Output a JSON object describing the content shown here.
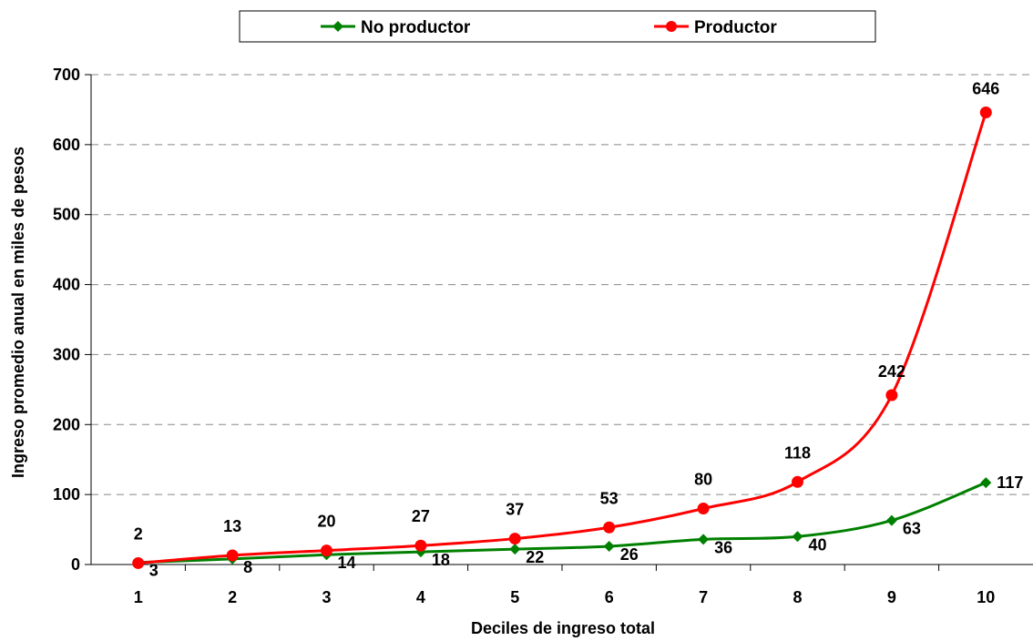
{
  "chart_data": {
    "type": "line",
    "title": "",
    "xlabel": "Deciles de ingreso total",
    "ylabel": "Ingreso promedio anual en miles de pesos",
    "categories": [
      "1",
      "2",
      "3",
      "4",
      "5",
      "6",
      "7",
      "8",
      "9",
      "10"
    ],
    "ylim": [
      0,
      700
    ],
    "yticks": [
      0,
      100,
      200,
      300,
      400,
      500,
      600,
      700
    ],
    "grid": "horizontal-dashed",
    "legend_position": "top",
    "series": [
      {
        "name": "No productor",
        "color": "#008000",
        "marker": "diamond",
        "values": [
          3,
          8,
          14,
          18,
          22,
          26,
          36,
          40,
          63,
          117
        ],
        "labels": [
          "3",
          "8",
          "14",
          "18",
          "22",
          "26",
          "36",
          "40",
          "63",
          "117"
        ]
      },
      {
        "name": "Productor",
        "color": "#ff0000",
        "marker": "circle",
        "values": [
          2,
          13,
          20,
          27,
          37,
          53,
          80,
          118,
          242,
          646
        ],
        "labels": [
          "2",
          "13",
          "20",
          "27",
          "37",
          "53",
          "80",
          "118",
          "242",
          "646"
        ]
      }
    ]
  }
}
